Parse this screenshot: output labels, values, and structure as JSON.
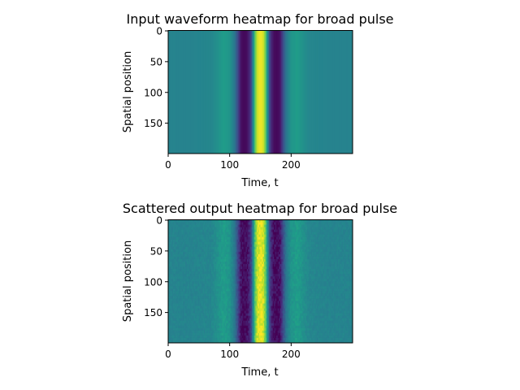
{
  "chart_data": [
    {
      "type": "heatmap",
      "title": "Input waveform heatmap for broad pulse",
      "xlabel": "Time, t",
      "ylabel": "Spatial position",
      "x_ticks": [
        "0",
        "100",
        "200"
      ],
      "y_ticks": [
        "0",
        "50",
        "100",
        "150"
      ],
      "xlim": [
        0,
        300
      ],
      "ylim": [
        200,
        0
      ],
      "colormap": "viridis",
      "noise": false,
      "profile": {
        "t": [
          0,
          40,
          70,
          80,
          90,
          100,
          108,
          114,
          118,
          122,
          128,
          134,
          138,
          142,
          146,
          150,
          154,
          158,
          162,
          166,
          172,
          178,
          182,
          186,
          192,
          200,
          210,
          220,
          230,
          260,
          300
        ],
        "value": [
          0.45,
          0.45,
          0.46,
          0.5,
          0.55,
          0.52,
          0.4,
          0.2,
          0.05,
          0.02,
          0.03,
          0.15,
          0.45,
          0.8,
          0.95,
          0.98,
          0.95,
          0.8,
          0.45,
          0.15,
          0.03,
          0.02,
          0.05,
          0.2,
          0.4,
          0.52,
          0.55,
          0.5,
          0.46,
          0.45,
          0.45
        ]
      }
    },
    {
      "type": "heatmap",
      "title": "Scattered output heatmap for broad pulse",
      "xlabel": "Time, t",
      "ylabel": "Spatial position",
      "x_ticks": [
        "0",
        "100",
        "200"
      ],
      "y_ticks": [
        "0",
        "50",
        "100",
        "150"
      ],
      "xlim": [
        0,
        300
      ],
      "ylim": [
        200,
        0
      ],
      "colormap": "viridis",
      "noise": true,
      "profile": {
        "t": [
          0,
          40,
          70,
          80,
          90,
          100,
          108,
          114,
          118,
          122,
          128,
          134,
          138,
          142,
          146,
          150,
          154,
          158,
          162,
          166,
          172,
          178,
          182,
          186,
          192,
          200,
          210,
          220,
          230,
          260,
          300
        ],
        "value": [
          0.45,
          0.45,
          0.46,
          0.5,
          0.55,
          0.52,
          0.4,
          0.2,
          0.05,
          0.02,
          0.03,
          0.15,
          0.45,
          0.8,
          0.95,
          0.98,
          0.95,
          0.8,
          0.45,
          0.15,
          0.03,
          0.02,
          0.05,
          0.2,
          0.4,
          0.52,
          0.55,
          0.5,
          0.46,
          0.45,
          0.45
        ]
      }
    }
  ]
}
